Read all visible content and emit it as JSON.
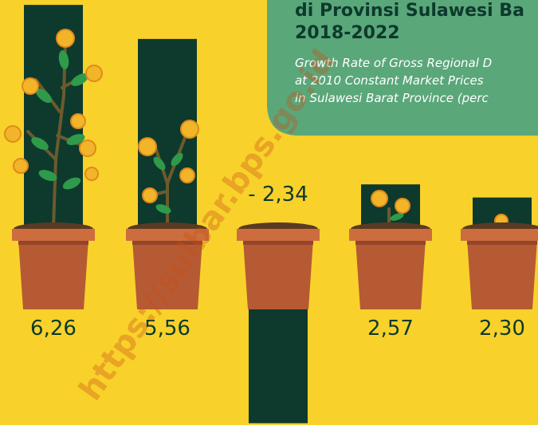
{
  "chart_data": {
    "type": "bar",
    "title_lines": [
      "di Provinsi Sulawesi Ba",
      "2018-2022"
    ],
    "subtitle_lines": [
      "Growth Rate of Gross Regional D",
      "at 2010 Constant Market Prices",
      "in Sulawesi Barat Province (perc"
    ],
    "categories": [
      null,
      null,
      null,
      null,
      null
    ],
    "values": [
      6.26,
      5.56,
      -2.34,
      2.57,
      2.3
    ],
    "value_labels": [
      "6,26",
      "5,56",
      "- 2,34",
      "2,57",
      "2,30"
    ],
    "color": "#0d3a2c",
    "watermark": "https://sulbar.bps.go.id"
  }
}
